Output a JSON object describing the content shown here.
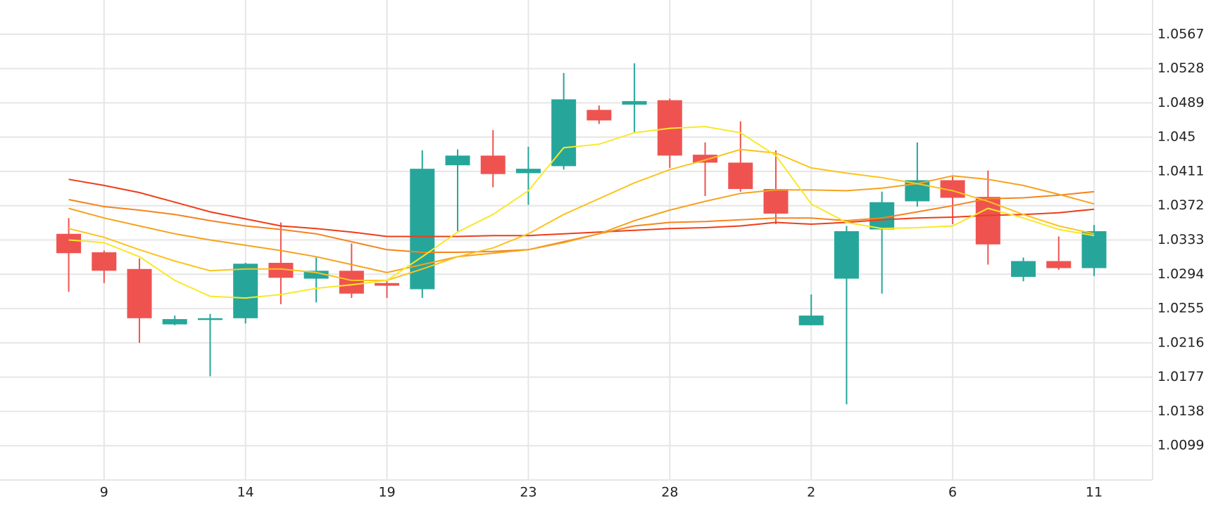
{
  "chart_data": {
    "type": "candlestick",
    "categories": [
      null,
      "9",
      null,
      null,
      null,
      "14",
      null,
      null,
      null,
      "19",
      null,
      null,
      null,
      "23",
      null,
      null,
      null,
      "28",
      null,
      null,
      null,
      "2",
      null,
      null,
      null,
      "6",
      null,
      null,
      null,
      "11"
    ],
    "open": [
      1.034,
      1.0319,
      1.03,
      1.0237,
      1.0242,
      1.0244,
      1.0307,
      1.0289,
      1.0298,
      1.0284,
      1.0277,
      1.0418,
      1.0429,
      1.0409,
      1.0417,
      1.0481,
      1.0487,
      1.0492,
      1.043,
      1.0421,
      1.0391,
      1.0236,
      1.0289,
      1.0345,
      1.0377,
      1.0401,
      1.0382,
      1.0291,
      1.0309,
      1.0301
    ],
    "high": [
      1.0358,
      1.0321,
      1.0312,
      1.0247,
      1.0249,
      1.0307,
      1.0353,
      1.0313,
      1.0329,
      1.0287,
      1.0435,
      1.0436,
      1.0458,
      1.0439,
      1.0523,
      1.0486,
      1.0534,
      1.0494,
      1.0444,
      1.0468,
      1.0435,
      1.0271,
      1.0349,
      1.0388,
      1.0444,
      1.0405,
      1.0412,
      1.0313,
      1.0337,
      1.035
    ],
    "low": [
      1.0274,
      1.0284,
      1.0216,
      1.0236,
      1.0178,
      1.0238,
      1.026,
      1.0262,
      1.0267,
      1.0267,
      1.0267,
      1.0343,
      1.0393,
      1.0373,
      1.0413,
      1.0465,
      1.0455,
      1.0415,
      1.0383,
      1.0388,
      1.0351,
      1.0236,
      1.0146,
      1.0272,
      1.0371,
      1.0351,
      1.0305,
      1.0286,
      1.0299,
      1.0292
    ],
    "close": [
      1.0318,
      1.0298,
      1.0244,
      1.0243,
      1.0244,
      1.0306,
      1.029,
      1.0298,
      1.0272,
      1.0281,
      1.0414,
      1.0429,
      1.0408,
      1.0414,
      1.0493,
      1.0469,
      1.0491,
      1.0429,
      1.0421,
      1.0391,
      1.0363,
      1.0247,
      1.0343,
      1.0376,
      1.0401,
      1.0381,
      1.0328,
      1.0309,
      1.0301,
      1.0343
    ],
    "up_color": "#26a69a",
    "down_color": "#ef5350",
    "overlays": [
      {
        "color": "#ee3d1a",
        "values": [
          1.0402,
          1.0395,
          1.0387,
          1.0376,
          1.0365,
          1.0357,
          1.0349,
          1.0346,
          1.0342,
          1.0337,
          1.0337,
          1.0337,
          1.0338,
          1.0338,
          1.034,
          1.0342,
          1.0344,
          1.0346,
          1.0347,
          1.0349,
          1.0353,
          1.0351,
          1.0353,
          1.0356,
          1.0358,
          1.0359,
          1.0361,
          1.0362,
          1.0364,
          1.0368
        ]
      },
      {
        "color": "#f5841f",
        "values": [
          1.0379,
          1.0371,
          1.0367,
          1.0362,
          1.0355,
          1.0349,
          1.0345,
          1.034,
          1.0331,
          1.0322,
          1.0319,
          1.0319,
          1.032,
          1.0322,
          1.0331,
          1.034,
          1.0349,
          1.0353,
          1.0354,
          1.0356,
          1.0358,
          1.0358,
          1.0355,
          1.0358,
          1.0365,
          1.0372,
          1.038,
          1.0381,
          1.0384,
          1.0388
        ]
      },
      {
        "color": "#f6a21e",
        "values": [
          1.0369,
          1.0358,
          1.0349,
          1.034,
          1.0333,
          1.0327,
          1.0321,
          1.0314,
          1.0305,
          1.0296,
          1.0305,
          1.0314,
          1.0318,
          1.0322,
          1.033,
          1.034,
          1.0355,
          1.0367,
          1.0377,
          1.0386,
          1.039,
          1.039,
          1.0389,
          1.0392,
          1.0397,
          1.0406,
          1.0402,
          1.0395,
          1.0385,
          1.0374
        ]
      },
      {
        "color": "#fbc31f",
        "values": [
          1.0346,
          1.0336,
          1.0322,
          1.0309,
          1.0298,
          1.03,
          1.03,
          1.0296,
          1.0287,
          1.0287,
          1.03,
          1.0314,
          1.0324,
          1.034,
          1.0362,
          1.038,
          1.0398,
          1.0413,
          1.0424,
          1.0436,
          1.0432,
          1.0415,
          1.0409,
          1.0404,
          1.0397,
          1.0389,
          1.0377,
          1.0362,
          1.0349,
          1.034
        ]
      },
      {
        "color": "#f9e829",
        "values": [
          1.0333,
          1.033,
          1.0314,
          1.0287,
          1.0269,
          1.0267,
          1.0271,
          1.0278,
          1.0282,
          1.0287,
          1.0314,
          1.0342,
          1.0362,
          1.0389,
          1.0438,
          1.0442,
          1.0455,
          1.046,
          1.0462,
          1.0455,
          1.0429,
          1.0374,
          1.0353,
          1.0346,
          1.0347,
          1.0349,
          1.0369,
          1.0358,
          1.0345,
          1.0338
        ]
      }
    ],
    "ylim": [
      1.006,
      1.0606
    ],
    "yticks": [
      1.0099,
      1.0138,
      1.0177,
      1.0216,
      1.0255,
      1.0294,
      1.0333,
      1.0372,
      1.0411,
      1.045,
      1.0489,
      1.0528,
      1.0567
    ],
    "grid": true
  }
}
